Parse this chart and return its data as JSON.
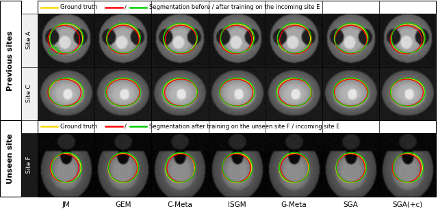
{
  "fig_width": 6.4,
  "fig_height": 3.09,
  "dpi": 100,
  "background_color": "#ffffff",
  "col_labels": [
    "JM",
    "GEM",
    "C-Meta",
    "ISGM",
    "G-Meta",
    "SGA",
    "SGA(+c)"
  ],
  "section1_label": "Previous sites",
  "section1_row_labels": [
    "Site A",
    "Site C"
  ],
  "section2_label": "Unseen site",
  "section2_row_labels": [
    "Site F"
  ],
  "legend1_gt_color": "#FFD700",
  "legend1_before_color": "#FF0000",
  "legend1_after_color": "#00CC00",
  "legend1_text1": "Ground truth",
  "legend1_text2": "Segmentation before / after training on the incoming site E",
  "legend2_gt_color": "#FFD700",
  "legend2_before_color": "#FF0000",
  "legend2_after_color": "#00CC00",
  "legend2_text1": "Ground truth",
  "legend2_text2": "Segmentation after training on the unseen site F / incoming site E",
  "text_color": "#000000",
  "font_size_legend": 6.0,
  "font_size_col_labels": 7.5,
  "font_size_row_labels": 6.5,
  "font_size_section_labels": 8.0
}
